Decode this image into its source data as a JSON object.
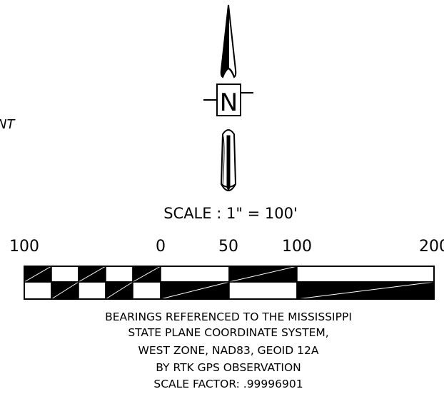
{
  "cut_off_text": "NT",
  "north_arrow": {
    "letter": "N"
  },
  "scale": {
    "title": "SCALE : 1\" = 100'",
    "tick_labels": [
      "100",
      "0",
      "50",
      "100",
      "200"
    ],
    "units": "feet"
  },
  "notes": [
    "BEARINGS REFERENCED TO THE MISSISSIPPI",
    "STATE PLANE COORDINATE SYSTEM,",
    "WEST ZONE, NAD83, GEOID 12A",
    "BY RTK GPS OBSERVATION",
    "SCALE FACTOR: .99996901"
  ],
  "colors": {
    "ink": "#000000",
    "paper": "#ffffff"
  }
}
